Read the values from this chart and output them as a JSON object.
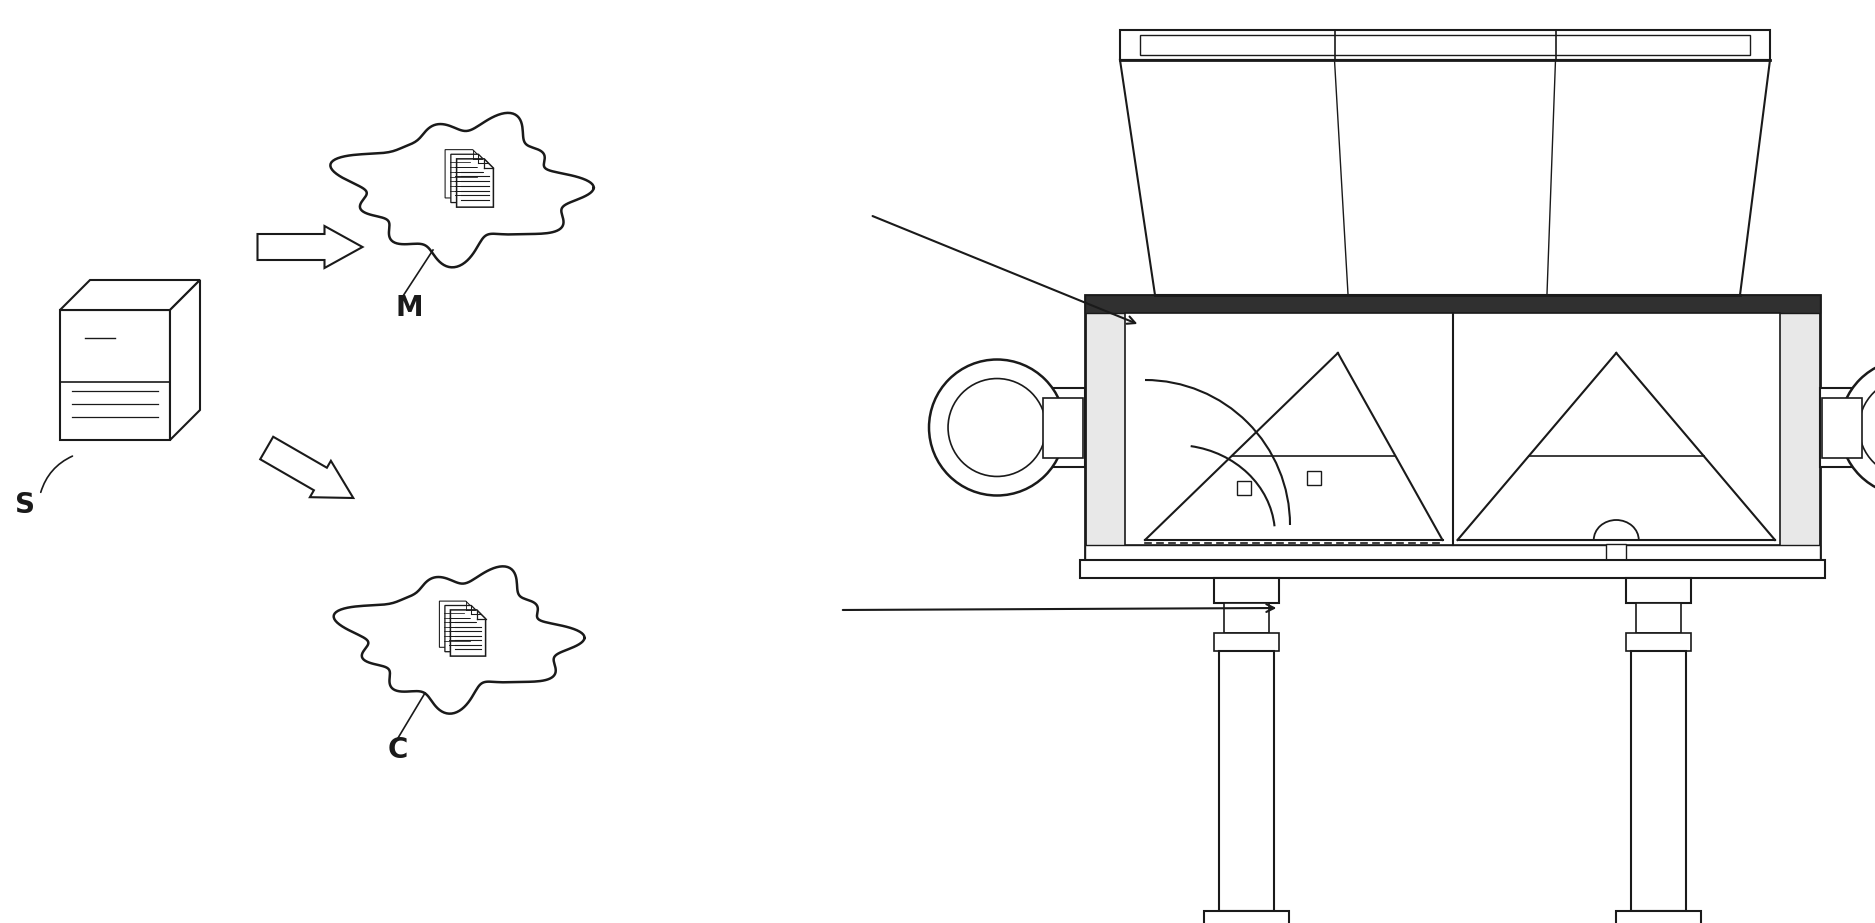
{
  "bg_color": "#ffffff",
  "line_color": "#1a1a1a",
  "label_S": "S",
  "label_M": "M",
  "label_C": "C",
  "figsize": [
    18.75,
    9.23
  ],
  "dpi": 100
}
